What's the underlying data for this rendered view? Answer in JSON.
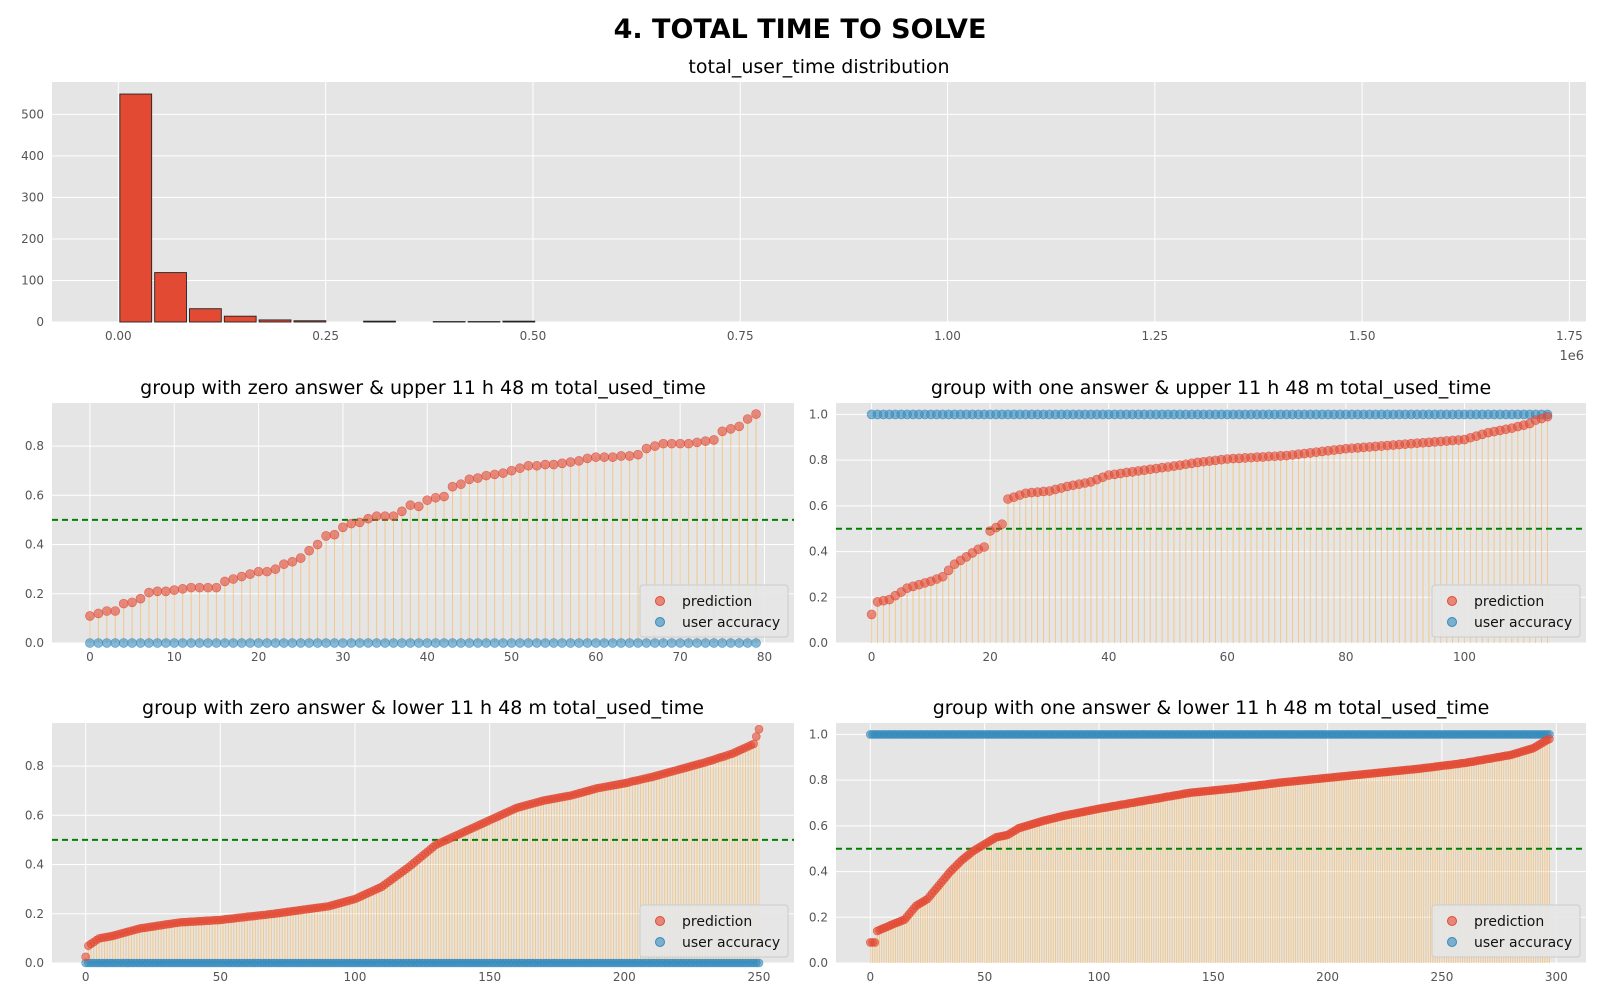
{
  "title": "4. TOTAL TIME TO SOLVE",
  "legend_labels": [
    "prediction",
    "user accuracy"
  ],
  "colors": {
    "prediction": "#E24A33",
    "user_accuracy": "#348ABD",
    "stem": "#F5BE6E",
    "threshold": "#008000",
    "hist_bar": "#E24A33",
    "panel_bg": "#E5E5E5"
  },
  "chart_data": [
    {
      "type": "bar",
      "title": "total_user_time distribution",
      "xlabel": "",
      "ylabel": "",
      "x_offset_label": "1e6",
      "xlim": [
        -0.08,
        1.77
      ],
      "ylim": [
        0,
        578
      ],
      "xticks": [
        0.0,
        0.25,
        0.5,
        0.75,
        1.0,
        1.25,
        1.5,
        1.75
      ],
      "xtick_labels": [
        "0.00",
        "0.25",
        "0.50",
        "0.75",
        "1.00",
        "1.25",
        "1.50",
        "1.75"
      ],
      "yticks": [
        0,
        100,
        200,
        300,
        400,
        500
      ],
      "ytick_labels": [
        "0",
        "100",
        "200",
        "300",
        "400",
        "500"
      ],
      "bins": [
        0.0,
        0.042,
        0.084,
        0.126,
        0.168,
        0.21,
        0.252,
        0.294,
        0.336,
        0.378,
        0.42,
        0.462,
        0.504
      ],
      "counts": [
        549,
        119,
        32,
        14,
        5,
        3,
        0,
        2,
        0,
        1,
        1,
        2
      ]
    },
    {
      "type": "scatter",
      "title": "group with zero answer & upper 11 h 48 m total_used_time",
      "xlabel": "",
      "ylabel": "",
      "xlim": [
        -4.5,
        83.5
      ],
      "ylim": [
        0,
        0.975
      ],
      "xticks": [
        0,
        10,
        20,
        30,
        40,
        50,
        60,
        70,
        80
      ],
      "yticks": [
        0.0,
        0.2,
        0.4,
        0.6,
        0.8
      ],
      "ytick_labels": [
        "0.0",
        "0.2",
        "0.4",
        "0.6",
        "0.8"
      ],
      "threshold": 0.5,
      "legend_position": "lower-right",
      "user_accuracy_constant": 0,
      "n": 80,
      "series": [
        {
          "name": "prediction",
          "values": [
            0.11,
            0.12,
            0.13,
            0.13,
            0.16,
            0.165,
            0.18,
            0.205,
            0.21,
            0.21,
            0.215,
            0.22,
            0.225,
            0.225,
            0.225,
            0.225,
            0.25,
            0.26,
            0.27,
            0.28,
            0.29,
            0.29,
            0.3,
            0.32,
            0.33,
            0.345,
            0.375,
            0.4,
            0.435,
            0.44,
            0.47,
            0.485,
            0.49,
            0.505,
            0.515,
            0.515,
            0.515,
            0.535,
            0.56,
            0.555,
            0.58,
            0.59,
            0.595,
            0.635,
            0.645,
            0.665,
            0.67,
            0.68,
            0.685,
            0.69,
            0.7,
            0.71,
            0.72,
            0.72,
            0.725,
            0.725,
            0.73,
            0.735,
            0.74,
            0.75,
            0.755,
            0.755,
            0.755,
            0.76,
            0.76,
            0.765,
            0.79,
            0.8,
            0.81,
            0.81,
            0.81,
            0.81,
            0.815,
            0.82,
            0.825,
            0.86,
            0.87,
            0.88,
            0.91,
            0.93
          ]
        }
      ]
    },
    {
      "type": "scatter",
      "title": "group with one answer & upper 11 h 48 m total_used_time",
      "xlabel": "",
      "ylabel": "",
      "xlim": [
        -6,
        120.5
      ],
      "ylim": [
        0,
        1.05
      ],
      "xticks": [
        0,
        20,
        40,
        60,
        80,
        100
      ],
      "yticks": [
        0.0,
        0.2,
        0.4,
        0.6,
        0.8,
        1.0
      ],
      "ytick_labels": [
        "0.0",
        "0.2",
        "0.4",
        "0.6",
        "0.8",
        "1.0"
      ],
      "threshold": 0.5,
      "legend_position": "lower-right",
      "user_accuracy_constant": 1,
      "n": 115,
      "series": [
        {
          "name": "prediction",
          "anchors": [
            [
              0,
              0.125
            ],
            [
              1,
              0.18
            ],
            [
              3,
              0.19
            ],
            [
              6,
              0.24
            ],
            [
              10,
              0.27
            ],
            [
              12,
              0.29
            ],
            [
              14,
              0.345
            ],
            [
              18,
              0.41
            ],
            [
              19,
              0.42
            ],
            [
              20,
              0.49
            ],
            [
              22,
              0.52
            ],
            [
              23,
              0.63
            ],
            [
              26,
              0.655
            ],
            [
              30,
              0.665
            ],
            [
              33,
              0.685
            ],
            [
              37,
              0.705
            ],
            [
              40,
              0.735
            ],
            [
              50,
              0.77
            ],
            [
              55,
              0.79
            ],
            [
              60,
              0.805
            ],
            [
              70,
              0.82
            ],
            [
              80,
              0.85
            ],
            [
              90,
              0.87
            ],
            [
              100,
              0.89
            ],
            [
              104,
              0.92
            ],
            [
              108,
              0.94
            ],
            [
              111,
              0.96
            ],
            [
              112,
              0.975
            ],
            [
              114,
              0.99
            ]
          ]
        }
      ]
    },
    {
      "type": "scatter",
      "title": "group with zero answer & lower 11 h 48 m total_used_time",
      "xlabel": "",
      "ylabel": "",
      "xlim": [
        -12.5,
        263
      ],
      "ylim": [
        0,
        0.975
      ],
      "xticks": [
        0,
        50,
        100,
        150,
        200,
        250
      ],
      "yticks": [
        0.0,
        0.2,
        0.4,
        0.6,
        0.8
      ],
      "ytick_labels": [
        "0.0",
        "0.2",
        "0.4",
        "0.6",
        "0.8"
      ],
      "threshold": 0.5,
      "legend_position": "lower-right",
      "user_accuracy_constant": 0,
      "n": 251,
      "series": [
        {
          "name": "prediction",
          "anchors": [
            [
              0,
              0.025
            ],
            [
              1,
              0.07
            ],
            [
              5,
              0.1
            ],
            [
              10,
              0.11
            ],
            [
              20,
              0.14
            ],
            [
              35,
              0.165
            ],
            [
              50,
              0.175
            ],
            [
              70,
              0.2
            ],
            [
              90,
              0.23
            ],
            [
              100,
              0.26
            ],
            [
              110,
              0.31
            ],
            [
              120,
              0.39
            ],
            [
              130,
              0.48
            ],
            [
              140,
              0.53
            ],
            [
              150,
              0.58
            ],
            [
              160,
              0.63
            ],
            [
              170,
              0.66
            ],
            [
              180,
              0.68
            ],
            [
              190,
              0.71
            ],
            [
              200,
              0.73
            ],
            [
              210,
              0.755
            ],
            [
              220,
              0.785
            ],
            [
              230,
              0.815
            ],
            [
              240,
              0.85
            ],
            [
              248,
              0.89
            ],
            [
              250,
              0.95
            ]
          ]
        }
      ]
    },
    {
      "type": "scatter",
      "title": "group with one answer & lower 11 h 48 m total_used_time",
      "xlabel": "",
      "ylabel": "",
      "xlim": [
        -15,
        313
      ],
      "ylim": [
        0,
        1.05
      ],
      "xticks": [
        0,
        50,
        100,
        150,
        200,
        250,
        300
      ],
      "yticks": [
        0.0,
        0.2,
        0.4,
        0.6,
        0.8,
        1.0
      ],
      "ytick_labels": [
        "0.0",
        "0.2",
        "0.4",
        "0.6",
        "0.8",
        "1.0"
      ],
      "threshold": 0.5,
      "legend_position": "lower-right",
      "user_accuracy_constant": 1,
      "n": 298,
      "series": [
        {
          "name": "prediction",
          "anchors": [
            [
              0,
              0.09
            ],
            [
              2,
              0.09
            ],
            [
              3,
              0.14
            ],
            [
              10,
              0.17
            ],
            [
              15,
              0.19
            ],
            [
              20,
              0.25
            ],
            [
              25,
              0.28
            ],
            [
              30,
              0.34
            ],
            [
              35,
              0.4
            ],
            [
              40,
              0.45
            ],
            [
              45,
              0.49
            ],
            [
              50,
              0.52
            ],
            [
              55,
              0.55
            ],
            [
              60,
              0.56
            ],
            [
              65,
              0.59
            ],
            [
              75,
              0.62
            ],
            [
              85,
              0.645
            ],
            [
              100,
              0.675
            ],
            [
              120,
              0.71
            ],
            [
              140,
              0.745
            ],
            [
              160,
              0.765
            ],
            [
              180,
              0.79
            ],
            [
              200,
              0.81
            ],
            [
              220,
              0.83
            ],
            [
              240,
              0.85
            ],
            [
              260,
              0.875
            ],
            [
              280,
              0.91
            ],
            [
              290,
              0.94
            ],
            [
              295,
              0.97
            ],
            [
              297,
              0.98
            ]
          ]
        }
      ]
    }
  ]
}
